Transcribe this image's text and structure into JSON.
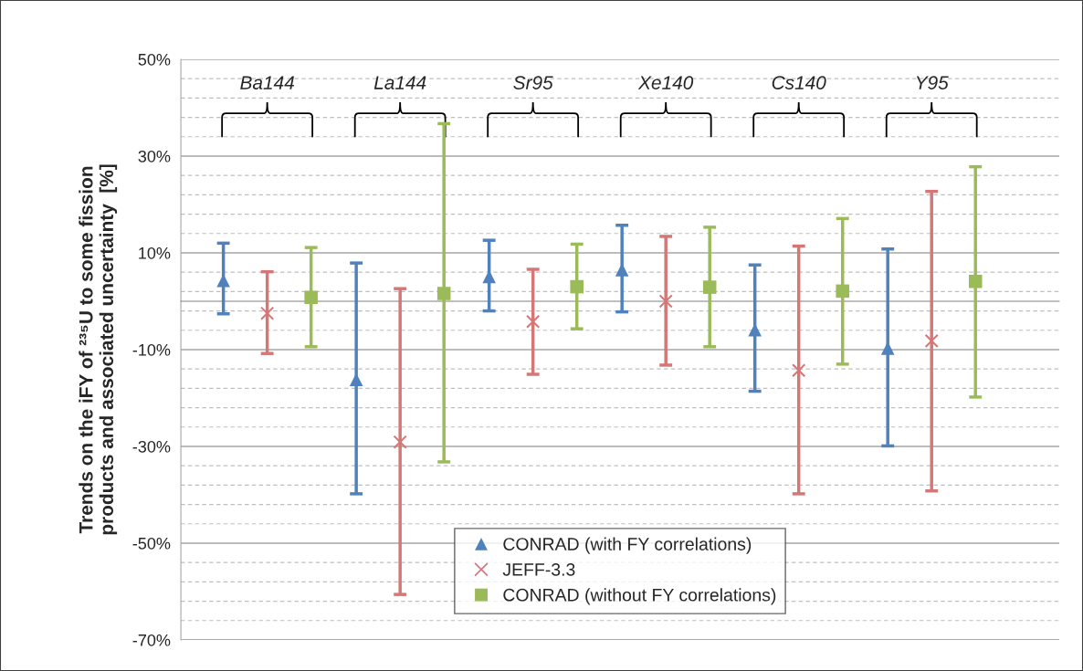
{
  "chart_data": {
    "type": "scatter",
    "categories": [
      "Ba144",
      "La144",
      "Sr95",
      "Xe140",
      "Cs140",
      "Y95"
    ],
    "ylabel": "Trends on the iFY of ²³⁵U to some fission\nproducts and associated uncertainty  [%]",
    "series": [
      {
        "name": "CONRAD (with FY correlations)",
        "color": "#4f81bd",
        "marker": "triangle",
        "values": [
          4.3,
          -16.2,
          5.1,
          6.5,
          -5.9,
          -9.7
        ],
        "errors": [
          [
            -2.6,
            12.0
          ],
          [
            -39.8,
            7.9
          ],
          [
            -2.0,
            12.6
          ],
          [
            -2.2,
            15.7
          ],
          [
            -18.6,
            7.5
          ],
          [
            -29.9,
            10.8
          ]
        ]
      },
      {
        "name": "JEFF-3.3",
        "color": "#d37777",
        "marker": "cross",
        "values": [
          -2.5,
          -29.1,
          -4.2,
          0.0,
          -14.3,
          -8.2
        ],
        "errors": [
          [
            -10.8,
            6.1
          ],
          [
            -60.6,
            2.6
          ],
          [
            -15.1,
            6.6
          ],
          [
            -13.2,
            13.4
          ],
          [
            -39.8,
            11.4
          ],
          [
            -39.2,
            22.7
          ]
        ]
      },
      {
        "name": "CONRAD (without FY correlations)",
        "color": "#9bbb59",
        "marker": "square",
        "values": [
          0.8,
          1.6,
          3.0,
          2.9,
          2.1,
          4.1
        ],
        "errors": [
          [
            -9.4,
            11.1
          ],
          [
            -33.2,
            36.7
          ],
          [
            -5.7,
            11.8
          ],
          [
            -9.4,
            15.3
          ],
          [
            -13.0,
            17.1
          ],
          [
            -19.8,
            27.8
          ]
        ]
      }
    ],
    "ylim": [
      -70,
      50
    ],
    "yticks": [
      {
        "value": 50,
        "label": "50%"
      },
      {
        "value": 46,
        "label": null
      },
      {
        "value": 42,
        "label": null
      },
      {
        "value": 38,
        "label": null
      },
      {
        "value": 34,
        "label": null
      },
      {
        "value": 30,
        "label": "30%"
      },
      {
        "value": 26,
        "label": null
      },
      {
        "value": 22,
        "label": null
      },
      {
        "value": 18,
        "label": null
      },
      {
        "value": 14,
        "label": null
      },
      {
        "value": 10,
        "label": "10%"
      },
      {
        "value": 6,
        "label": null
      },
      {
        "value": 2,
        "label": null
      },
      {
        "value": -2,
        "label": null
      },
      {
        "value": -6,
        "label": null
      },
      {
        "value": -10,
        "label": "-10%"
      },
      {
        "value": -14,
        "label": null
      },
      {
        "value": -18,
        "label": null
      },
      {
        "value": -22,
        "label": null
      },
      {
        "value": -26,
        "label": null
      },
      {
        "value": -30,
        "label": "-30%"
      },
      {
        "value": -34,
        "label": null
      },
      {
        "value": -38,
        "label": null
      },
      {
        "value": -42,
        "label": null
      },
      {
        "value": -46,
        "label": null
      },
      {
        "value": -50,
        "label": "-50%"
      },
      {
        "value": -54,
        "label": null
      },
      {
        "value": -58,
        "label": null
      },
      {
        "value": -62,
        "label": null
      },
      {
        "value": -66,
        "label": null
      },
      {
        "value": -70,
        "label": "-70%"
      }
    ],
    "grid": "y",
    "legend": "bottom"
  }
}
